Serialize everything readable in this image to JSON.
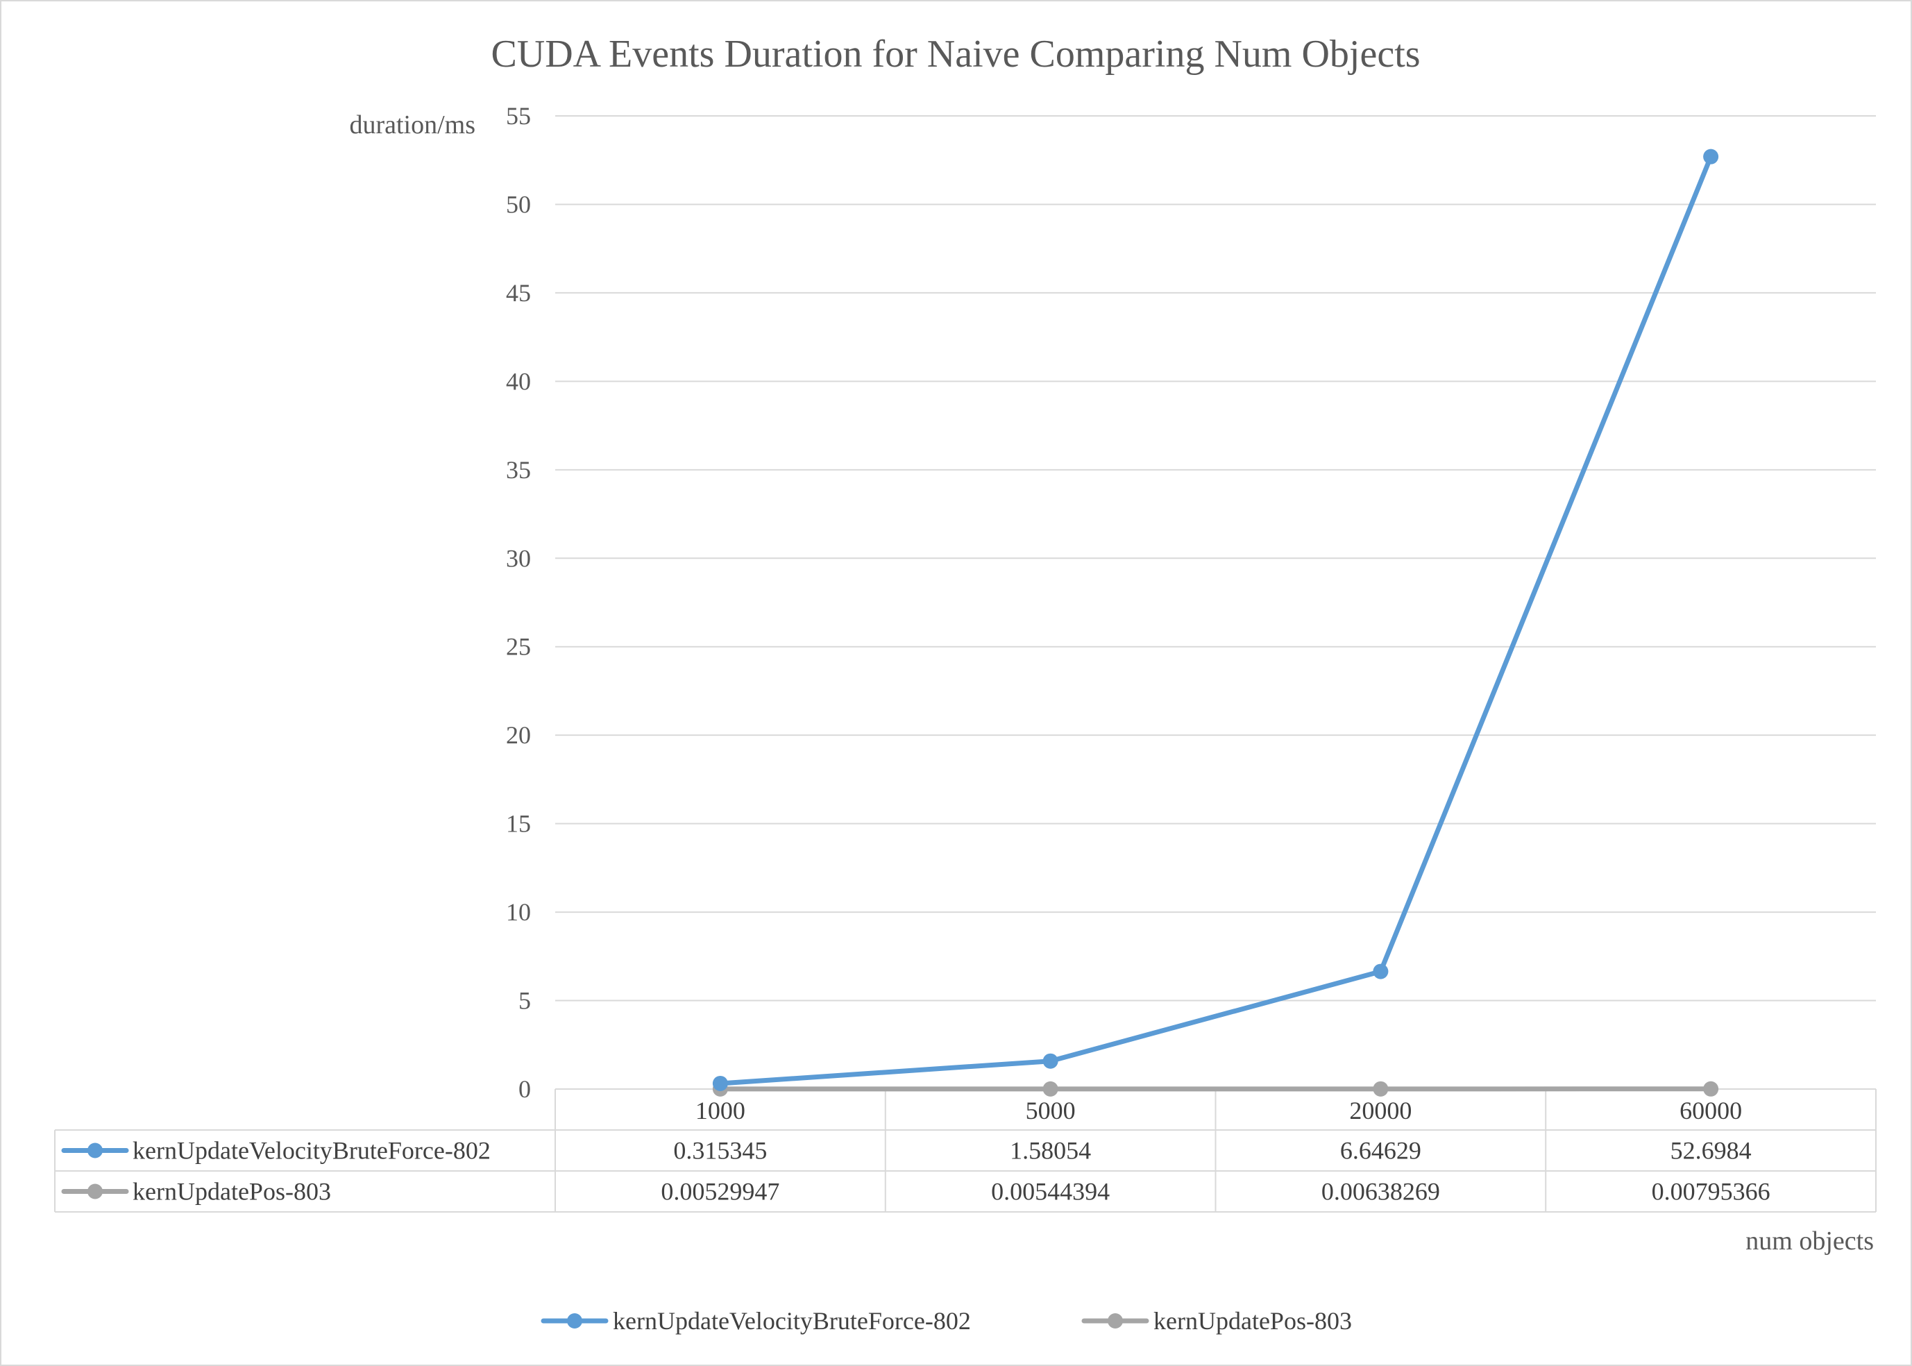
{
  "chart_data": {
    "type": "line",
    "title": "CUDA Events Duration for Naive Comparing Num Objects",
    "xlabel": "num objects",
    "ylabel": "duration/ms",
    "categories": [
      "1000",
      "5000",
      "20000",
      "60000"
    ],
    "y_ticks": [
      "0",
      "5",
      "10",
      "15",
      "20",
      "25",
      "30",
      "35",
      "40",
      "45",
      "50",
      "55"
    ],
    "ylim": [
      0,
      55
    ],
    "grid": true,
    "legend_position": "bottom",
    "data_table": true,
    "series": [
      {
        "name": "kernUpdateVelocityBruteForce-802",
        "color": "#5b9bd5",
        "values": [
          0.315345,
          1.58054,
          6.64629,
          52.6984
        ],
        "labels": [
          "0.315345",
          "1.58054",
          "6.64629",
          "52.6984"
        ]
      },
      {
        "name": "kernUpdatePos-803",
        "color": "#a5a5a5",
        "values": [
          0.00529947,
          0.00544394,
          0.00638269,
          0.00795366
        ],
        "labels": [
          "0.00529947",
          "0.00544394",
          "0.00638269",
          "0.00795366"
        ]
      }
    ]
  }
}
